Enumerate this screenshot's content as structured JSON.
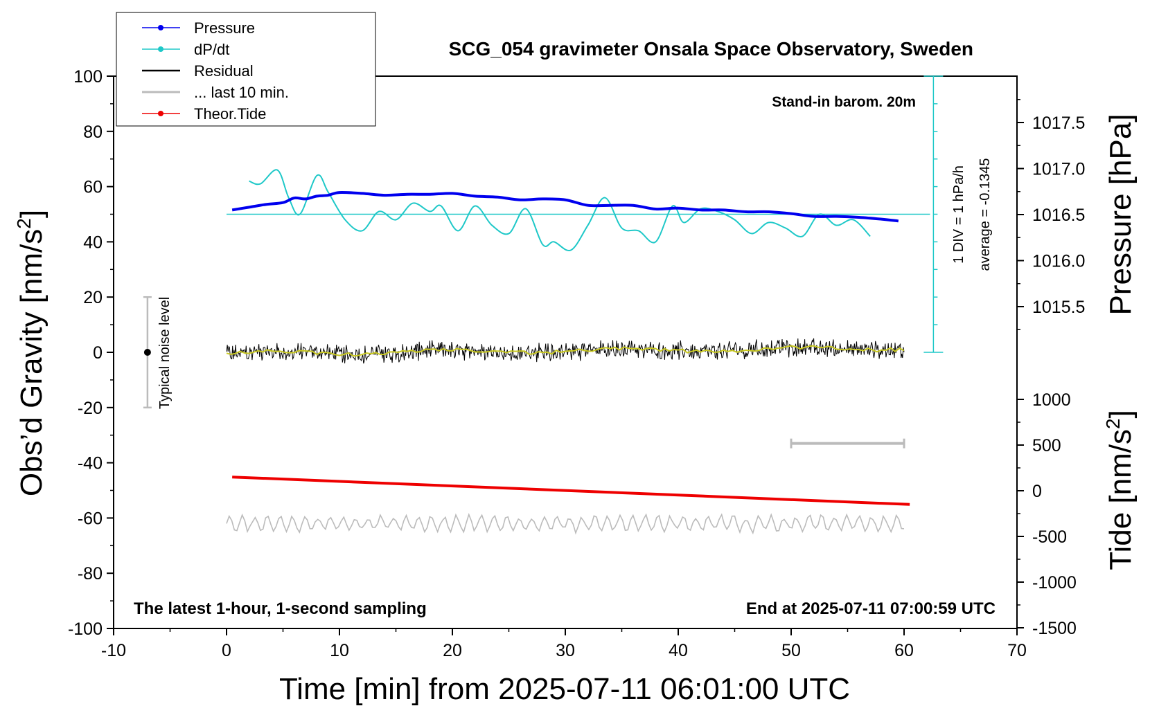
{
  "chart_data": {
    "type": "line",
    "title": "SCG_054 gravimeter Onsala Space Observatory, Sweden",
    "xlabel": "Time [min] from 2025-07-11 06:01:00 UTC",
    "ylabel_left": "Obs’d Gravity [nm/s²]",
    "ylabel_right_pressure": "Pressure [hPa]",
    "ylabel_right_tide": "Tide [nm/s²]",
    "xlim": [
      -10,
      70
    ],
    "ylim_left": [
      -100,
      100
    ],
    "pressure_axis": {
      "ticks": [
        1015.5,
        1016.0,
        1016.5,
        1017.0,
        1017.5
      ]
    },
    "tide_axis": {
      "ticks": [
        1000,
        500,
        0,
        -500,
        -1000,
        -1500
      ]
    },
    "x_ticks": [
      -10,
      0,
      10,
      20,
      30,
      40,
      50,
      60,
      70
    ],
    "y_ticks_left": [
      100,
      80,
      60,
      40,
      20,
      0,
      -20,
      -40,
      -60,
      -80,
      -100
    ],
    "annotations": {
      "barometer": "Stand-in barom. 20m",
      "div": "1 DIV = 1 hPa/h",
      "average": "average = -0.1345",
      "latest": "The latest 1-hour, 1-second sampling",
      "end": "End at 2025-07-11 07:00:59 UTC",
      "noise": "Typical noise level"
    },
    "legend": [
      {
        "label": "Pressure",
        "color": "#0000ee",
        "marker": true
      },
      {
        "label": "dP/dt",
        "color": "#1ec8c8",
        "marker": true
      },
      {
        "label": "Residual",
        "color": "#000000",
        "marker": false
      },
      {
        "label": "... last 10 min.",
        "color": "#bbbbbb",
        "marker": false
      },
      {
        "label": "Theor.Tide",
        "color": "#ee0000",
        "marker": true
      }
    ],
    "series": [
      {
        "name": "Pressure",
        "axis": "pressure",
        "color": "#0000ee",
        "x": [
          0.5,
          2,
          3.5,
          5,
          6,
          7,
          8,
          9,
          10,
          12,
          14,
          16,
          18,
          20,
          22,
          24,
          26,
          28,
          30,
          32,
          34,
          36,
          38,
          40,
          42,
          44,
          46,
          48,
          50,
          52,
          54,
          56,
          58,
          59.5
        ],
        "values": [
          1016.55,
          1016.58,
          1016.61,
          1016.63,
          1016.68,
          1016.67,
          1016.7,
          1016.71,
          1016.74,
          1016.73,
          1016.71,
          1016.72,
          1016.72,
          1016.73,
          1016.7,
          1016.69,
          1016.66,
          1016.67,
          1016.66,
          1016.6,
          1016.6,
          1016.6,
          1016.56,
          1016.57,
          1016.55,
          1016.55,
          1016.53,
          1016.53,
          1016.51,
          1016.48,
          1016.48,
          1016.47,
          1016.45,
          1016.43
        ]
      },
      {
        "name": "dP/dt",
        "axis": "gravity",
        "color": "#1ec8c8",
        "x": [
          2,
          3,
          4.5,
          5.5,
          6.5,
          8,
          9,
          10.5,
          12,
          13.5,
          15,
          16.5,
          18,
          19,
          20.5,
          22,
          23.5,
          25,
          26.5,
          28,
          29,
          30.5,
          32,
          33.5,
          35,
          36.5,
          38,
          39.5,
          40.5,
          42,
          43.5,
          45,
          46.5,
          48,
          49.5,
          51,
          52.5,
          54,
          55.5,
          57
        ],
        "values": [
          62,
          61,
          66,
          56,
          50,
          64,
          58,
          48,
          44,
          51,
          48,
          54,
          51,
          53,
          44,
          53,
          46,
          43,
          52,
          39,
          40,
          37,
          46,
          56,
          45,
          44,
          40,
          53,
          47,
          52,
          51,
          48,
          43,
          47,
          45,
          42,
          50,
          46,
          48,
          42
        ]
      },
      {
        "name": "Residual",
        "axis": "gravity",
        "color": "#000000",
        "x_range": [
          0,
          60
        ],
        "mean": [
          -0.5,
          1.5
        ],
        "amplitude": 3
      },
      {
        "name": "... last 10 min.",
        "axis": "gravity",
        "color": "#bbbbbb",
        "x_range": [
          0,
          60
        ],
        "mean": -62,
        "amplitude": 3
      },
      {
        "name": "Theor.Tide",
        "axis": "tide",
        "color": "#ee0000",
        "x": [
          0.5,
          60.5
        ],
        "values": [
          150,
          -150
        ]
      }
    ],
    "dpdt_zero_level": 50,
    "dpdt_div_ticks": [
      100,
      90,
      80,
      70,
      60,
      50,
      40,
      30,
      20,
      10,
      0
    ],
    "scale_bar": {
      "x": [
        50,
        60
      ],
      "y": -33
    },
    "noise_bar": {
      "x": -7,
      "y": [
        -20,
        20
      ]
    }
  }
}
